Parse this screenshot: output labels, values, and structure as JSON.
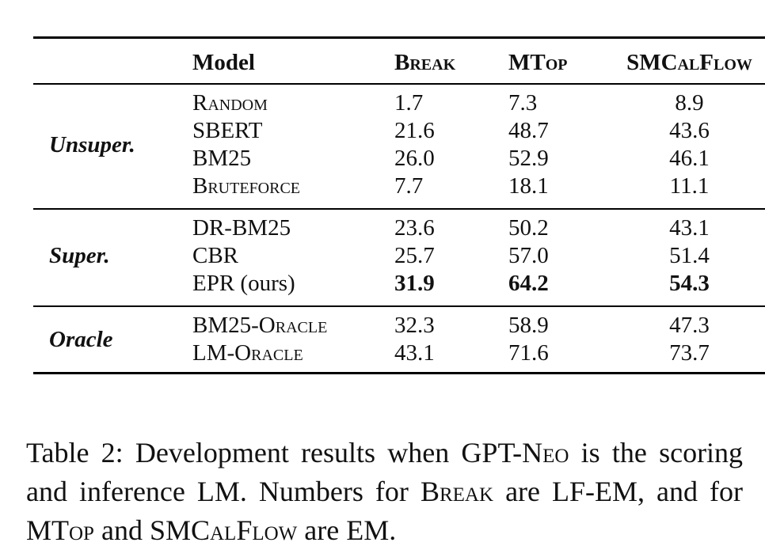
{
  "table": {
    "headers": [
      "Model",
      "Break",
      "MTop",
      "SMCalFlow"
    ],
    "groups": [
      {
        "label": "Unsuper.",
        "rows": [
          {
            "model": "Random",
            "values": [
              "1.7",
              "7.3",
              "8.9"
            ]
          },
          {
            "model": "SBERT",
            "values": [
              "21.6",
              "48.7",
              "43.6"
            ]
          },
          {
            "model": "BM25",
            "values": [
              "26.0",
              "52.9",
              "46.1"
            ]
          },
          {
            "model": "Bruteforce",
            "values": [
              "7.7",
              "18.1",
              "11.1"
            ]
          }
        ]
      },
      {
        "label": "Super.",
        "rows": [
          {
            "model": "DR-BM25",
            "values": [
              "23.6",
              "50.2",
              "43.1"
            ]
          },
          {
            "model": "CBR",
            "values": [
              "25.7",
              "57.0",
              "51.4"
            ]
          },
          {
            "model": "EPR (ours)",
            "values": [
              "31.9",
              "64.2",
              "54.3"
            ]
          }
        ]
      },
      {
        "label": "Oracle",
        "rows": [
          {
            "model": "BM25-Oracle",
            "values": [
              "32.3",
              "58.9",
              "47.3"
            ]
          },
          {
            "model": "LM-Oracle",
            "values": [
              "43.1",
              "71.6",
              "73.7"
            ]
          }
        ]
      }
    ]
  },
  "caption": {
    "label": "Table 2:",
    "parts": [
      "Development results when",
      "GPT-Neo",
      "is the scoring and inference LM. Numbers for",
      "Break",
      "are LF-EM, and for",
      "MTop",
      "and",
      "SMCalFlow",
      "are EM."
    ]
  }
}
